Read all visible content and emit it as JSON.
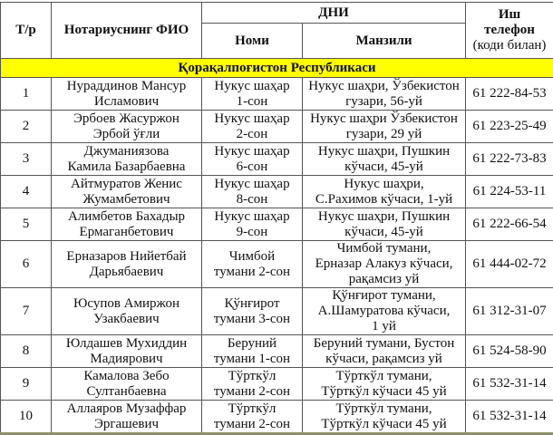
{
  "header": {
    "num": "Т/р",
    "name": "Нотариуснинг ФИО",
    "office_group": "ДНИ",
    "office_name": "Номи",
    "office_address": "Манзили",
    "phone_line1": "Иш",
    "phone_line2": "телефон",
    "phone_line3": "(коди билан)"
  },
  "region": "Қорақалпоғистон Республикаси",
  "highlight_color": "#ffff00",
  "rows": [
    {
      "num": "1",
      "name1": "Нураддинов Мансур",
      "name2": "Исламович",
      "office1": "Нукус шаҳар",
      "office2": "1-сон",
      "addr1": "Нукус шаҳри, Ўзбекистон",
      "addr2": "гузари, 56-уй",
      "addr3": "",
      "phone": "61 222-84-53"
    },
    {
      "num": "2",
      "name1": "Эрбоев Жасуржон",
      "name2": "Эрбой ўғли",
      "office1": "Нукус шаҳар",
      "office2": "2-сон",
      "addr1": "Нукус шаҳри Ўзбекистон",
      "addr2": "гузари, 29 уй",
      "addr3": "",
      "phone": "61 223-25-49"
    },
    {
      "num": "3",
      "name1": "Джуманиязова",
      "name2": "Камила Базарбаевна",
      "office1": "Нукус шаҳар",
      "office2": "6-сон",
      "addr1": "Нукус шаҳри, Пушкин",
      "addr2": "кўчаси, 45-уй",
      "addr3": "",
      "phone": "61 222-73-83"
    },
    {
      "num": "4",
      "name1": "Айтмуратов Женис",
      "name2": "Жумамбетович",
      "office1": "Нукус шаҳар",
      "office2": "8-сон",
      "addr1": "Нукус шаҳри,",
      "addr2": "С.Рахимов кўчаси, 1-уй",
      "addr3": "",
      "phone": "61 224-53-11"
    },
    {
      "num": "5",
      "name1": "Алимбетов Бахадыр",
      "name2": "Ермаганбетович",
      "office1": "Нукус шаҳар",
      "office2": "9-сон",
      "addr1": "Нукус шаҳри, Пушкин",
      "addr2": "кўчаси, 45-уй",
      "addr3": "",
      "phone": "61 222-66-54"
    },
    {
      "num": "6",
      "name1": "Ерназаров Нийетбай",
      "name2": "Дарьябаевич",
      "office1": "Чимбой",
      "office2": "тумани 2-сон",
      "addr1": "Чимбой тумани,",
      "addr2": "Ерназар Алакуз кўчаси,",
      "addr3": "рақамсиз уй",
      "phone": "61 444-02-72"
    },
    {
      "num": "7",
      "name1": "Юсупов Амиржон",
      "name2": "Узакбаевич",
      "office1": "Қўнғирот",
      "office2": "тумани 3-сон",
      "addr1": "Қўнғирот тумани,",
      "addr2": "А.Шамуратова кўчаси,",
      "addr3": "1 уй",
      "phone": "61 312-31-07"
    },
    {
      "num": "8",
      "name1": "Юлдашев Мухиддин",
      "name2": "Мадиярович",
      "office1": "Беруний",
      "office2": "тумани 1-сон",
      "addr1": "Беруний тумани, Бустон",
      "addr2": "кўчаси, рақамсиз уй",
      "addr3": "",
      "phone": "61 524-58-90"
    },
    {
      "num": "9",
      "name1": "Камалова Зебо",
      "name2": "Султанбаевна",
      "office1": "Тўрткўл",
      "office2": "тумани 2-сон",
      "addr1": "Тўрткўл тумани,",
      "addr2": "Тўрткўл кўчаси 45 уй",
      "addr3": "",
      "phone": "61 532-31-14"
    },
    {
      "num": "10",
      "name1": "Аллаяров Музаффар",
      "name2": "Эргашевич",
      "office1": "Тўрткўл",
      "office2": "тумани 2-сон",
      "addr1": "Тўрткўл тумани,",
      "addr2": "Тўрткўл кўчаси 45 уй",
      "addr3": "",
      "phone": "61 532-31-14"
    }
  ]
}
